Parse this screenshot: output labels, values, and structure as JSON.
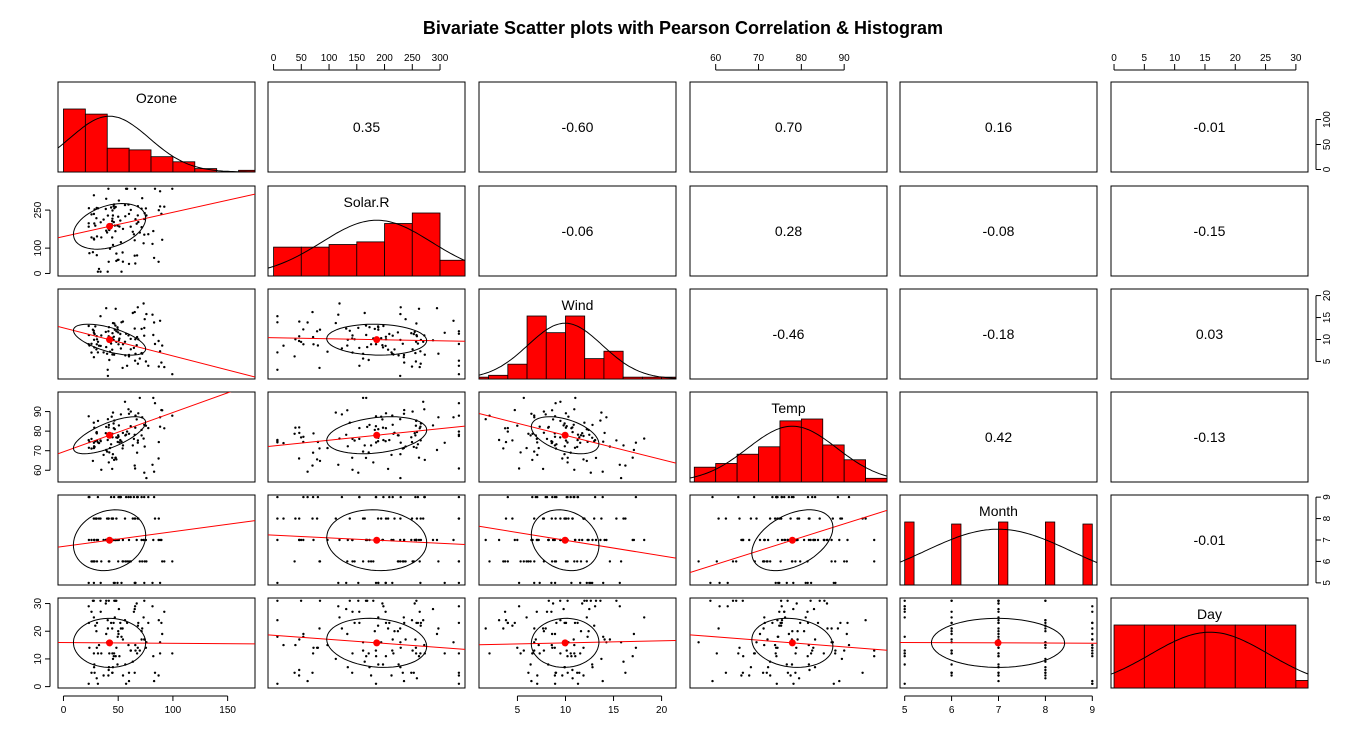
{
  "chart_data": {
    "type": "scatter",
    "title": "Bivariate Scatter plots with Pearson Correlation & Histogram",
    "layout": "scatterplot-matrix (pairs.panels)",
    "variables": [
      "Ozone",
      "Solar.R",
      "Wind",
      "Temp",
      "Month",
      "Day"
    ],
    "axes": {
      "Ozone": {
        "range": [
          -5,
          175
        ],
        "ticks": [
          0,
          50,
          100,
          150
        ]
      },
      "Solar.R": {
        "range": [
          -10,
          345
        ],
        "ticks": [
          0,
          50,
          100,
          150,
          200,
          250,
          300
        ],
        "left_ticks": [
          0,
          100,
          250
        ]
      },
      "Wind": {
        "range": [
          1,
          21.5
        ],
        "ticks": [
          5,
          10,
          15,
          20
        ]
      },
      "Temp": {
        "range": [
          54,
          100
        ],
        "ticks": [
          60,
          70,
          80,
          90
        ]
      },
      "Month": {
        "range": [
          4.9,
          9.1
        ],
        "ticks": [
          5,
          6,
          7,
          8,
          9
        ]
      },
      "Day": {
        "range": [
          -0.5,
          32
        ],
        "ticks": [
          0,
          5,
          10,
          15,
          20,
          25,
          30
        ],
        "left_ticks": [
          0,
          10,
          20,
          30
        ]
      }
    },
    "means": {
      "Ozone": 42.1,
      "Solar.R": 185.9,
      "Wind": 9.96,
      "Temp": 77.9,
      "Month": 6.99,
      "Day": 15.8
    },
    "sds": {
      "Ozone": 33.0,
      "Solar.R": 90.1,
      "Wind": 3.52,
      "Temp": 9.47,
      "Month": 1.42,
      "Day": 8.86
    },
    "correlations": [
      {
        "row": "Ozone",
        "col": "Solar.R",
        "r": "0.35"
      },
      {
        "row": "Ozone",
        "col": "Wind",
        "r": "-0.60"
      },
      {
        "row": "Ozone",
        "col": "Temp",
        "r": "0.70"
      },
      {
        "row": "Ozone",
        "col": "Month",
        "r": "0.16"
      },
      {
        "row": "Ozone",
        "col": "Day",
        "r": "-0.01"
      },
      {
        "row": "Solar.R",
        "col": "Wind",
        "r": "-0.06"
      },
      {
        "row": "Solar.R",
        "col": "Temp",
        "r": "0.28"
      },
      {
        "row": "Solar.R",
        "col": "Month",
        "r": "-0.08"
      },
      {
        "row": "Solar.R",
        "col": "Day",
        "r": "-0.15"
      },
      {
        "row": "Wind",
        "col": "Temp",
        "r": "-0.46"
      },
      {
        "row": "Wind",
        "col": "Month",
        "r": "-0.18"
      },
      {
        "row": "Wind",
        "col": "Day",
        "r": "0.03"
      },
      {
        "row": "Temp",
        "col": "Month",
        "r": "0.42"
      },
      {
        "row": "Temp",
        "col": "Day",
        "r": "-0.13"
      },
      {
        "row": "Month",
        "col": "Day",
        "r": "-0.01"
      }
    ],
    "histograms": {
      "Ozone": {
        "edges": [
          0,
          20,
          40,
          60,
          80,
          100,
          120,
          140,
          160,
          180
        ],
        "counts": [
          37,
          34,
          14,
          13,
          9,
          6,
          2,
          0,
          1
        ]
      },
      "Solar.R": {
        "edges": [
          0,
          50,
          100,
          150,
          200,
          250,
          300,
          350
        ],
        "counts": [
          11,
          11,
          12,
          13,
          20,
          24,
          6
        ]
      },
      "Wind": {
        "edges": [
          0,
          2,
          4,
          6,
          8,
          10,
          12,
          14,
          16,
          18,
          20,
          22
        ],
        "counts": [
          1,
          2,
          8,
          34,
          25,
          34,
          11,
          15,
          1,
          1,
          1
        ]
      },
      "Temp": {
        "edges": [
          55,
          60,
          65,
          70,
          75,
          80,
          85,
          90,
          95,
          100
        ],
        "counts": [
          8,
          10,
          15,
          19,
          33,
          34,
          20,
          12,
          2
        ]
      },
      "Month": {
        "edges": [
          5,
          5.2,
          5.4,
          5.6,
          5.8,
          6,
          6.2,
          6.4,
          6.6,
          6.8,
          7,
          7.2,
          7.4,
          7.6,
          7.8,
          8,
          8.2,
          8.4,
          8.6,
          8.8,
          9
        ],
        "counts": [
          31,
          0,
          0,
          0,
          0,
          30,
          0,
          0,
          0,
          0,
          31,
          0,
          0,
          0,
          0,
          31,
          0,
          0,
          0,
          30
        ]
      },
      "Day": {
        "edges": [
          0,
          5,
          10,
          15,
          20,
          25,
          30,
          35
        ],
        "counts": [
          25,
          25,
          25,
          25,
          25,
          25,
          3
        ]
      }
    },
    "colors": {
      "bars": "#ff0000",
      "fit_line": "#ff0000",
      "mean_point": "#ff0000",
      "points": "#000000",
      "ellipse": "#000000"
    }
  }
}
